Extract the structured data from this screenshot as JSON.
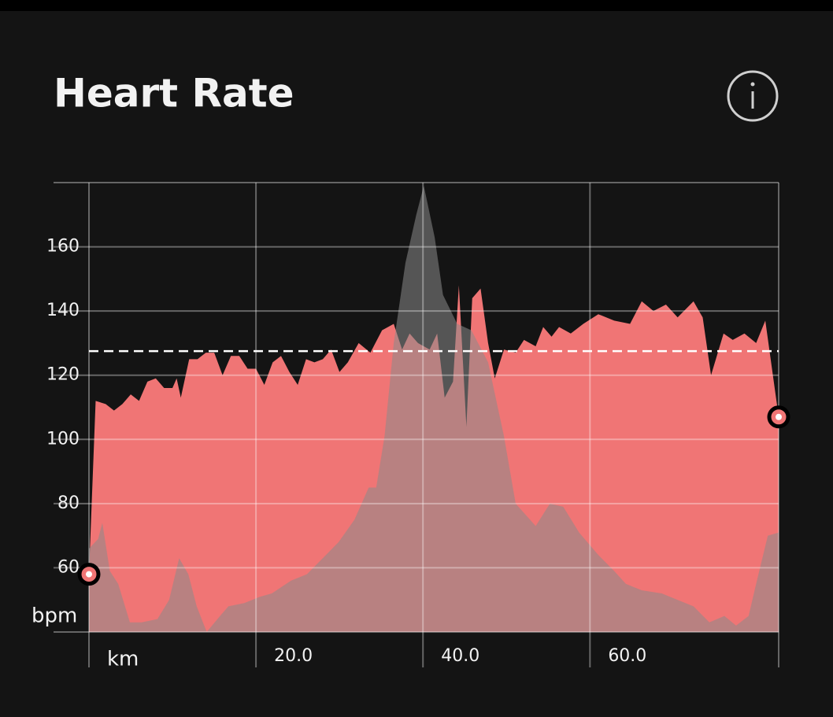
{
  "chart_data": {
    "type": "area",
    "title": "Heart Rate",
    "y_label": "bpm",
    "xlim": [
      0,
      82.6
    ],
    "xticks": [
      {
        "value": 0,
        "label": "km"
      },
      {
        "value": 20,
        "label": "20.0"
      },
      {
        "value": 40,
        "label": "40.0"
      },
      {
        "value": 60,
        "label": "60.0"
      }
    ],
    "ylim": [
      40,
      180
    ],
    "yticks": [
      60,
      80,
      100,
      120,
      140,
      160
    ],
    "grid": true,
    "average": 127.5,
    "series": [
      {
        "color": "#f07575",
        "x": [
          0,
          0.8,
          2,
          3,
          4,
          5,
          6,
          7,
          8,
          9,
          10,
          10.5,
          11,
          12,
          13,
          14,
          15,
          16,
          17,
          18,
          19,
          20,
          21,
          22,
          23,
          24,
          25,
          26,
          27,
          28,
          29,
          30,
          31,
          32.3,
          33.7,
          35.1,
          36.5,
          37.5,
          38.4,
          39.4,
          40.8,
          41.7,
          42.6,
          43.6,
          44.3,
          45.2,
          45.9,
          46.9,
          47.8,
          48.6,
          49.7,
          51.1,
          52.1,
          53.5,
          54.4,
          55.4,
          56.3,
          57.7,
          59.2,
          61,
          62.9,
          64.8,
          66.2,
          67.6,
          69.1,
          70.5,
          72.4,
          73.5,
          74.5,
          76,
          77.1,
          78.5,
          79.9,
          81,
          82.6
        ],
        "values": [
          58,
          112,
          111,
          109,
          111,
          114,
          112,
          118,
          119,
          116,
          116,
          119,
          113,
          125,
          125,
          127,
          127,
          120,
          126,
          126,
          122,
          122,
          117,
          124,
          126,
          121,
          117,
          125,
          124,
          125,
          128,
          121,
          124,
          130,
          127,
          134,
          136,
          128,
          133,
          130,
          128,
          133,
          113,
          118,
          148,
          104,
          144,
          147,
          130,
          119,
          128,
          127,
          131,
          129,
          135,
          132,
          135,
          133,
          136,
          139,
          137,
          136,
          143,
          140,
          142,
          138,
          143,
          138,
          120,
          133,
          131,
          133,
          130,
          137,
          107
        ]
      },
      {
        "color": "#8a8a8a",
        "x": [
          0,
          1.1,
          1.6,
          2.5,
          3.5,
          4.9,
          6.3,
          8.2,
          9.6,
          10.8,
          11.9,
          12.9,
          14.1,
          15.7,
          16.7,
          18.6,
          20.5,
          21.9,
          24.2,
          26.1,
          28.0,
          29.9,
          31.8,
          33.5,
          34.4,
          35.4,
          36.5,
          37.9,
          39.2,
          40.1,
          41.4,
          42.4,
          44.1,
          45.8,
          47.8,
          49.7,
          51.1,
          53.5,
          55.2,
          56.8,
          58.7,
          61.0,
          62.9,
          64.3,
          66.2,
          68.6,
          70.5,
          72.4,
          74.3,
          76.1,
          77.5,
          79.0,
          79.9,
          81.3,
          82.6
        ],
        "values": [
          66,
          69,
          74,
          59,
          55,
          43,
          43,
          44,
          50,
          63,
          58,
          48,
          40,
          45,
          48,
          49,
          51,
          52,
          56,
          58,
          63,
          68,
          75,
          85,
          85,
          101,
          130,
          155,
          170,
          179,
          163,
          145,
          136,
          134,
          124,
          101,
          80,
          73,
          80,
          79,
          71,
          64,
          59,
          55,
          53,
          52,
          50,
          48,
          43,
          45,
          42,
          45,
          55,
          70,
          71
        ]
      }
    ]
  }
}
